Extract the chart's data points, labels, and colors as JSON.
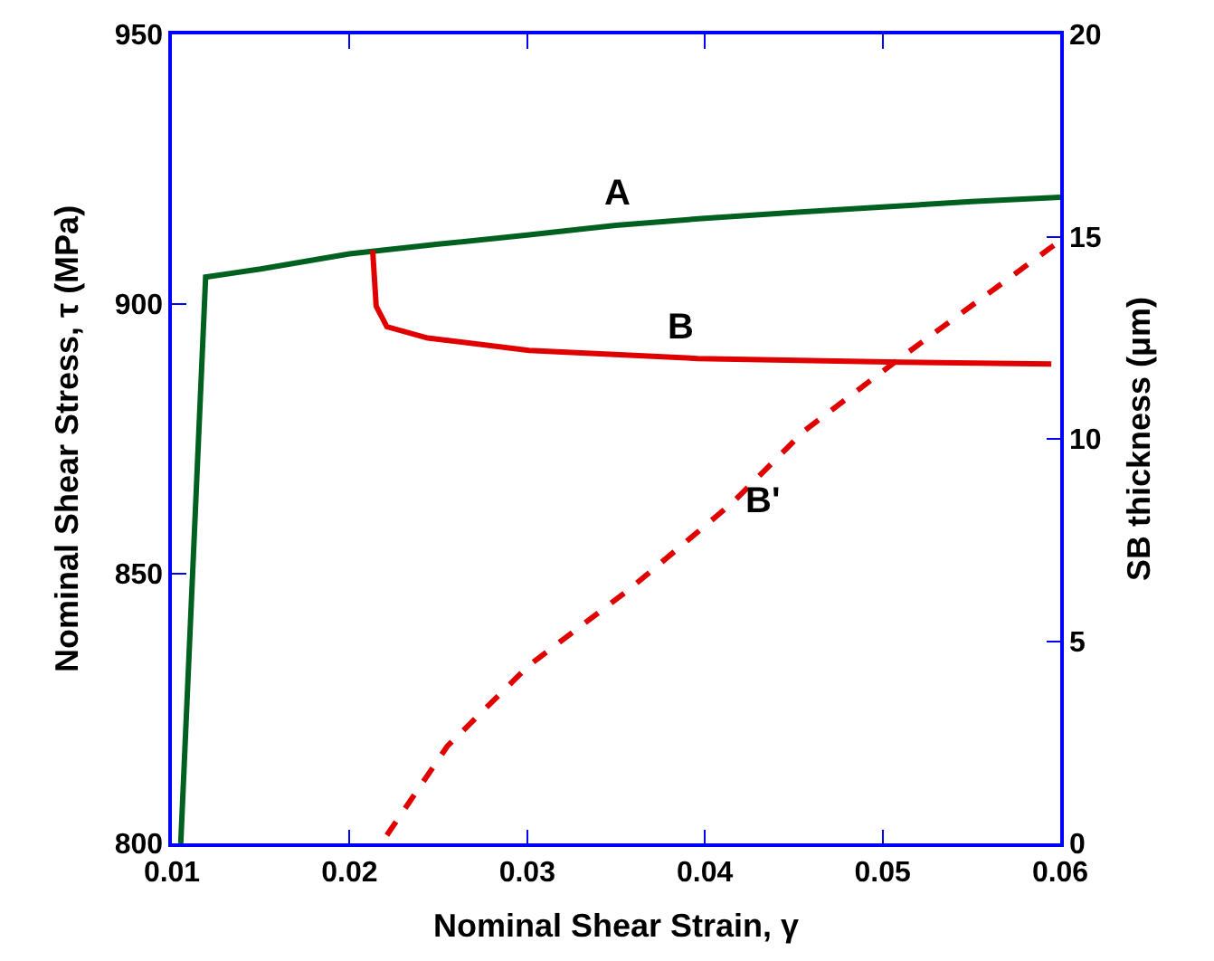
{
  "chart_data": {
    "type": "line",
    "xlabel": "Nominal Shear Strain, γ",
    "ylabel": "Nominal Shear Stress, τ (MPa)",
    "y2label": "SB thickness (μm)",
    "xlim": [
      0.01,
      0.06
    ],
    "xticks": [
      0.01,
      0.02,
      0.03,
      0.04,
      0.05,
      0.06
    ],
    "ylim": [
      800,
      950
    ],
    "yticks": [
      800,
      850,
      900,
      950
    ],
    "y2lim": [
      0,
      20
    ],
    "y2ticks": [
      0,
      5,
      10,
      15,
      20
    ],
    "legend": false,
    "marker": "none",
    "series": [
      {
        "name": "A",
        "color": "#006020",
        "line_style": "solid",
        "x": [
          0.0105,
          0.0119,
          0.015,
          0.02,
          0.025,
          0.03,
          0.035,
          0.04,
          0.045,
          0.05,
          0.055,
          0.06
        ],
        "values": [
          800,
          905,
          906.5,
          909.3,
          911.1,
          912.8,
          914.6,
          915.9,
          917,
          918,
          919,
          919.8
        ]
      },
      {
        "name": "B",
        "color": "#e00000",
        "line_style": "solid",
        "x": [
          0.0213,
          0.0215,
          0.0221,
          0.0244,
          0.0301,
          0.0396,
          0.051,
          0.0595
        ],
        "values": [
          910,
          899.6,
          895.8,
          893.7,
          891.4,
          889.9,
          889.2,
          888.9
        ]
      },
      {
        "name": "B'",
        "color": "#e00000",
        "line_style": "dashed",
        "axis": "y2",
        "x": [
          0.0221,
          0.0255,
          0.0301,
          0.0358,
          0.0415,
          0.0456,
          0.051,
          0.06
        ],
        "values": [
          0.2,
          2.4,
          4.4,
          6.3,
          8.4,
          10.2,
          12.0,
          14.9
        ]
      }
    ]
  }
}
